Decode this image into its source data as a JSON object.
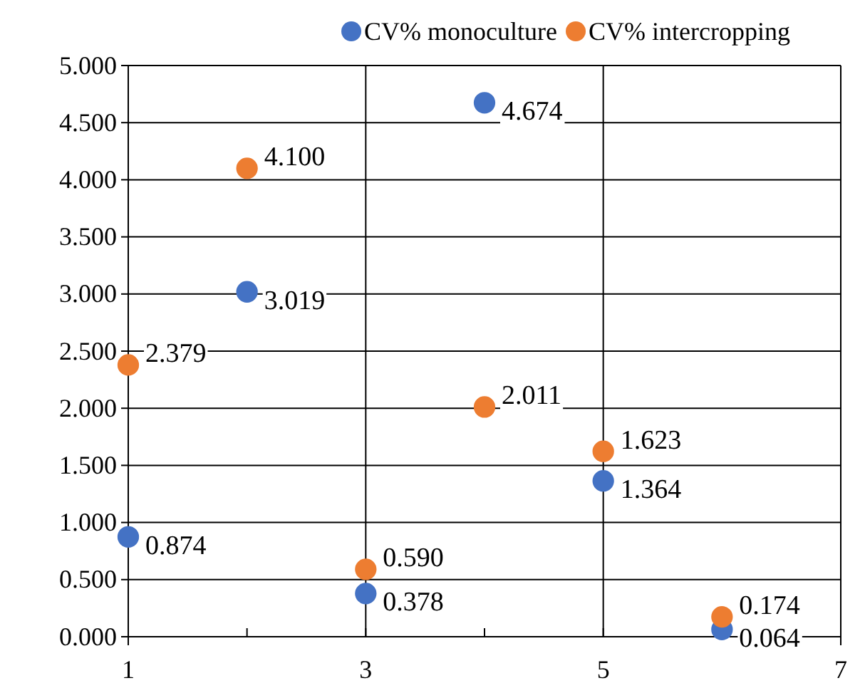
{
  "chart_data": {
    "type": "scatter",
    "x": [
      1,
      2,
      3,
      4,
      5,
      6
    ],
    "series": [
      {
        "name": "CV% monoculture",
        "color": "#4472c4",
        "values": [
          0.874,
          3.019,
          0.378,
          4.674,
          1.364,
          0.064
        ],
        "value_labels": [
          "0.874",
          "3.019",
          "0.378",
          "4.674",
          "1.364",
          "0.064"
        ]
      },
      {
        "name": "CV% intercropping",
        "color": "#ed7d31",
        "values": [
          2.379,
          4.1,
          0.59,
          2.011,
          1.623,
          0.174
        ],
        "value_labels": [
          "2.379",
          "4.100",
          "0.590",
          "2.011",
          "1.623",
          "0.174"
        ]
      }
    ],
    "xlim": [
      1,
      7
    ],
    "xticks": [
      1,
      {
        "value": 2,
        "label": null
      },
      3,
      {
        "value": 4,
        "label": null
      },
      5,
      {
        "value": 6,
        "label": null
      },
      7
    ],
    "ylim": [
      0,
      5
    ],
    "yticks": [
      {
        "value": 0,
        "label": "0.000"
      },
      {
        "value": 0.5,
        "label": "0.500"
      },
      {
        "value": 1,
        "label": "1.000"
      },
      {
        "value": 1.5,
        "label": "1.500"
      },
      {
        "value": 2,
        "label": "2.000"
      },
      {
        "value": 2.5,
        "label": "2.500"
      },
      {
        "value": 3,
        "label": "3.000"
      },
      {
        "value": 3.5,
        "label": "3.500"
      },
      {
        "value": 4,
        "label": "4.000"
      },
      {
        "value": 4.5,
        "label": "4.500"
      },
      {
        "value": 5,
        "label": "5.000"
      }
    ],
    "grid": true,
    "legend": "top",
    "marker": "circle"
  }
}
